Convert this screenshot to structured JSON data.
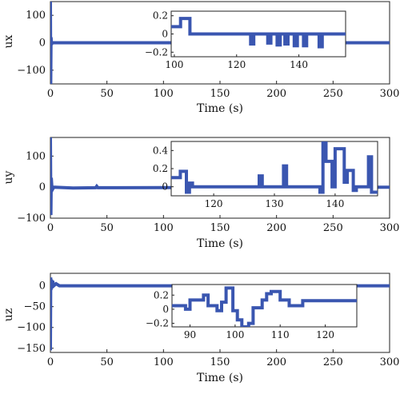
{
  "chart_data": [
    {
      "type": "line",
      "title": "",
      "ylabel": "ux",
      "xlabel": "Time (s)",
      "xlim": [
        0,
        300
      ],
      "ylim": [
        -150,
        150
      ],
      "xticks": [
        0,
        50,
        100,
        150,
        200,
        250,
        300
      ],
      "yticks": [
        -100,
        0,
        100
      ],
      "grid": false,
      "color": "#3a56b0",
      "series": [
        {
          "x": [
            0,
            0.3,
            0.6,
            1,
            2,
            300
          ],
          "y": [
            150,
            -150,
            20,
            -5,
            0,
            0
          ]
        }
      ],
      "inset": {
        "xlim": [
          99,
          155
        ],
        "ylim": [
          -0.25,
          0.25
        ],
        "xticks": [
          100,
          120,
          140
        ],
        "yticks": [
          -0.2,
          0,
          0.2
        ],
        "series": [
          {
            "x": [
              99,
              102,
              102,
              105,
              105,
              124.5,
              124.5,
              125.5,
              125.5,
              130,
              130,
              131,
              131,
              133,
              133,
              134,
              134,
              135.5,
              135.5,
              136.5,
              136.5,
              138.5,
              138.5,
              139.5,
              139.5,
              141.5,
              141.5,
              142.5,
              142.5,
              146.5,
              146.5,
              147.5,
              147.5,
              155
            ],
            "y": [
              0.08,
              0.08,
              0.17,
              0.17,
              0,
              0,
              -0.11,
              -0.11,
              0,
              0,
              -0.1,
              -0.1,
              0,
              0,
              -0.12,
              -0.12,
              0,
              0,
              -0.11,
              -0.11,
              0,
              0,
              -0.13,
              -0.13,
              0,
              0,
              -0.13,
              -0.13,
              0,
              0,
              -0.14,
              -0.14,
              0,
              0
            ]
          }
        ]
      }
    },
    {
      "type": "line",
      "title": "",
      "ylabel": "uy",
      "xlabel": "Time (s)",
      "xlim": [
        0,
        300
      ],
      "ylim": [
        -100,
        160
      ],
      "xticks": [
        0,
        50,
        100,
        150,
        200,
        250,
        300
      ],
      "yticks": [
        -100,
        0,
        100
      ],
      "grid": false,
      "color": "#3a56b0",
      "series": [
        {
          "x": [
            0,
            0.4,
            0.8,
            1.5,
            3,
            20,
            40,
            41,
            42,
            60,
            300
          ],
          "y": [
            160,
            -90,
            30,
            -10,
            0,
            -3,
            -2,
            3,
            -2,
            -2,
            0
          ]
        }
      ],
      "inset": {
        "xlim": [
          113,
          147
        ],
        "ylim": [
          -0.1,
          0.5
        ],
        "xticks": [
          120,
          130,
          140
        ],
        "yticks": [
          0,
          0.2,
          0.4
        ],
        "series": [
          {
            "x": [
              113,
              114.5,
              114.5,
              115.5,
              115.5,
              116,
              116,
              116.5,
              116.5,
              127.5,
              127.5,
              128,
              128,
              131.5,
              131.5,
              132,
              132,
              137.5,
              137.5,
              138,
              138,
              138.5,
              138.5,
              139.5,
              139.5,
              140,
              140,
              141.5,
              141.5,
              142,
              142,
              143,
              143,
              143.5,
              143.5,
              145.5,
              145.5,
              146,
              146,
              147
            ],
            "y": [
              0.1,
              0.1,
              0.17,
              0.17,
              -0.06,
              -0.06,
              0.04,
              0.04,
              0,
              0,
              0.12,
              0.12,
              0,
              0,
              0.23,
              0.23,
              0,
              0,
              -0.06,
              -0.06,
              0.5,
              0.5,
              0.28,
              0.28,
              0,
              0,
              0.42,
              0.42,
              0.05,
              0.05,
              0.18,
              0.18,
              -0.04,
              -0.04,
              0,
              0,
              0.33,
              0.33,
              -0.06,
              -0.06
            ]
          }
        ]
      }
    },
    {
      "type": "line",
      "title": "",
      "ylabel": "uz",
      "xlabel": "Time (s)",
      "xlim": [
        0,
        300
      ],
      "ylim": [
        -160,
        30
      ],
      "xticks": [
        0,
        50,
        100,
        150,
        200,
        250,
        300
      ],
      "yticks": [
        -150,
        -100,
        -50,
        0
      ],
      "grid": false,
      "color": "#3a56b0",
      "series": [
        {
          "x": [
            0,
            0.3,
            0.6,
            1,
            1.5,
            2,
            3,
            5,
            8,
            300
          ],
          "y": [
            -155,
            20,
            -10,
            15,
            2,
            12,
            0,
            5,
            0,
            0
          ]
        }
      ],
      "inset": {
        "xlim": [
          86,
          127
        ],
        "ylim": [
          -0.25,
          0.35
        ],
        "xticks": [
          90,
          100,
          110,
          120
        ],
        "yticks": [
          -0.2,
          0,
          0.2
        ],
        "series": [
          {
            "x": [
              86,
              87,
              87,
              89,
              89,
              90,
              90,
              93,
              93,
              94,
              94,
              96,
              96,
              97,
              97,
              98,
              98,
              99.5,
              99.5,
              100.5,
              100.5,
              101.5,
              101.5,
              103,
              103,
              104,
              104,
              106,
              106,
              107,
              107,
              108,
              108,
              110,
              110,
              112,
              112,
              115,
              115,
              127
            ],
            "y": [
              0.05,
              0.05,
              0.05,
              0.05,
              0,
              0,
              0.13,
              0.13,
              0.2,
              0.2,
              0.05,
              0.05,
              -0.02,
              -0.02,
              0.1,
              0.1,
              0.3,
              0.3,
              -0.02,
              -0.02,
              -0.15,
              -0.15,
              -0.25,
              -0.25,
              -0.2,
              -0.2,
              0.02,
              0.02,
              0.13,
              0.13,
              0.22,
              0.22,
              0.25,
              0.25,
              0.13,
              0.13,
              0.05,
              0.05,
              0.12,
              0.12
            ]
          }
        ]
      }
    }
  ]
}
